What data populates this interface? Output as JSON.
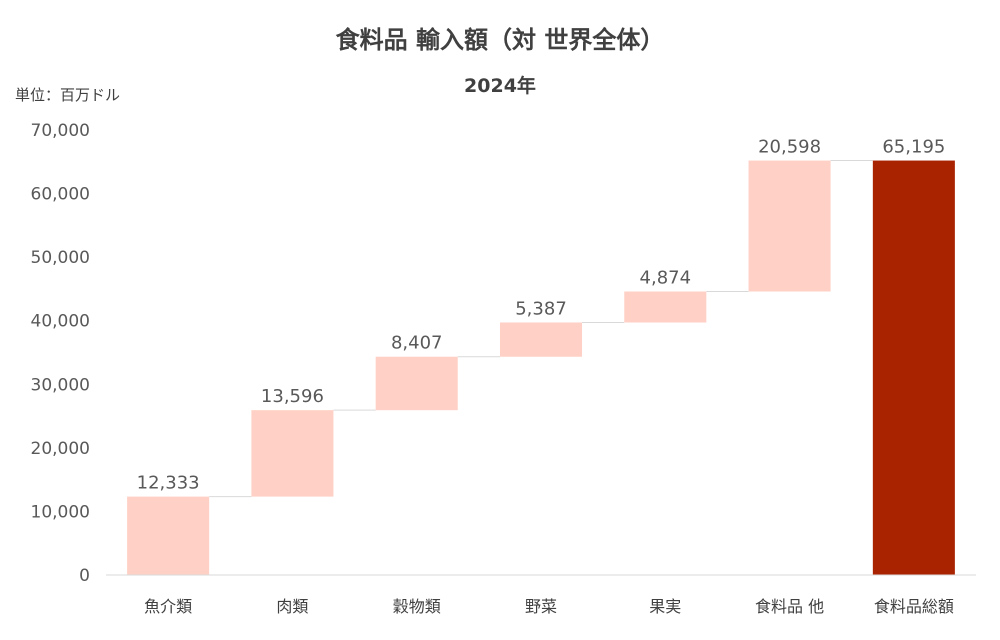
{
  "chart_data": {
    "type": "bar",
    "subtype": "waterfall",
    "title": "食料品 輸入額（対 世界全体）",
    "subtitle": "2024年",
    "unit_label": "単位：百万ドル",
    "ylim": [
      0,
      70000
    ],
    "yticks": [
      0,
      10000,
      20000,
      30000,
      40000,
      50000,
      60000,
      70000
    ],
    "ytick_labels": [
      "0",
      "10,000",
      "20,000",
      "30,000",
      "40,000",
      "50,000",
      "60,000",
      "70,000"
    ],
    "grid": false,
    "legend": "none",
    "categories": [
      "魚介類",
      "肉類",
      "穀物類",
      "野菜",
      "果実",
      "食料品 他",
      "食料品総額"
    ],
    "values": [
      12333,
      13596,
      8407,
      5387,
      4874,
      20598,
      65195
    ],
    "value_labels": [
      "12,333",
      "13,596",
      "8,407",
      "5,387",
      "4,874",
      "20,598",
      "65,195"
    ],
    "total_index": 6,
    "colors": {
      "increment": "#FFD0C5",
      "total": "#A92300",
      "connector": "#D9D9D9",
      "axis": "#D9D9D9"
    }
  }
}
